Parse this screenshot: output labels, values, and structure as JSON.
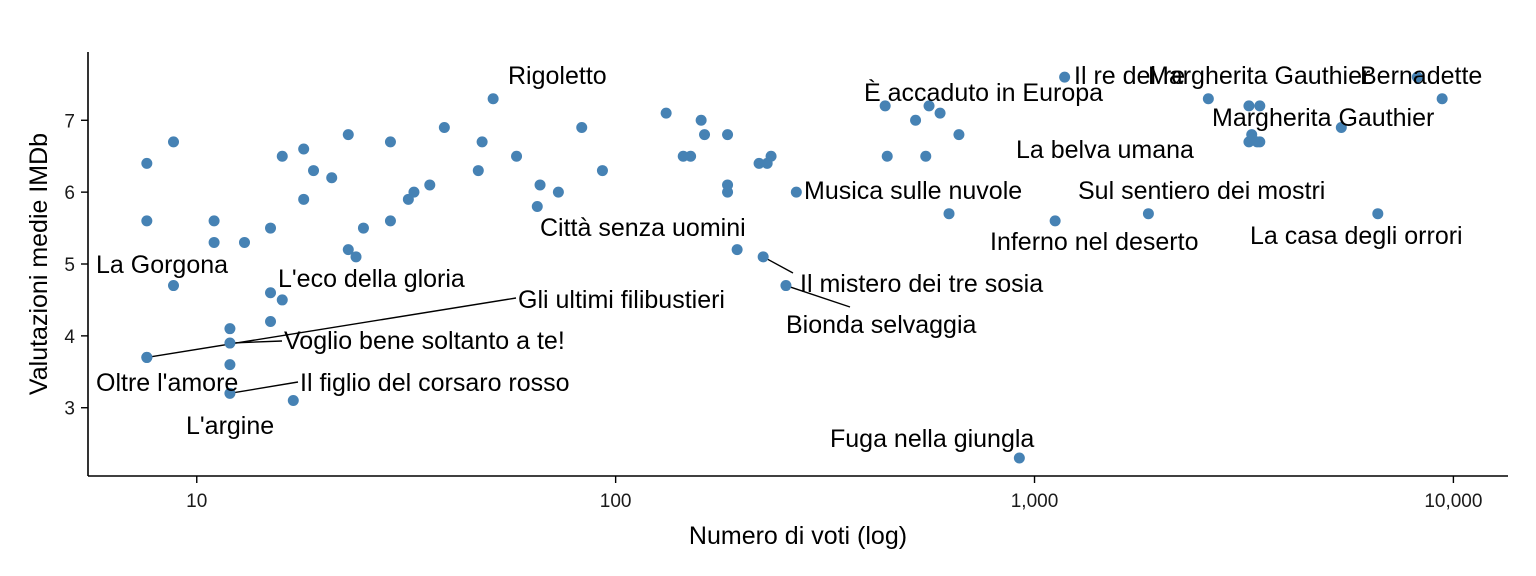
{
  "chart_data": {
    "type": "scatter",
    "xlabel": "Numero di voti (log)",
    "ylabel": "Valutazioni medie IMDb",
    "x_scale": "log10",
    "xlim": [
      5.5,
      13500
    ],
    "ylim": [
      2.05,
      7.95
    ],
    "x_ticks": [
      {
        "value": 10,
        "label": "10"
      },
      {
        "value": 100,
        "label": "100"
      },
      {
        "value": 1000,
        "label": "1,000"
      },
      {
        "value": 10000,
        "label": "10,000"
      }
    ],
    "y_ticks": [
      {
        "value": 3,
        "label": "3"
      },
      {
        "value": 4,
        "label": "4"
      },
      {
        "value": 5,
        "label": "5"
      },
      {
        "value": 6,
        "label": "6"
      },
      {
        "value": 7,
        "label": "7"
      }
    ],
    "point_color": "#4682b4",
    "grid": false,
    "labeled_points": [
      {
        "label": "Rigoletto",
        "x": 51,
        "y": 7.3
      },
      {
        "label": "Il re del re",
        "x": 1180,
        "y": 7.6
      },
      {
        "label": "Margherita Gauthier",
        "x": 2600,
        "y": 7.3
      },
      {
        "label": "Bernadette",
        "x": 8200,
        "y": 7.6
      },
      {
        "label": "Margherita Gauthier",
        "x": 9400,
        "y": 7.3
      },
      {
        "label": "È accaduto in Europa",
        "x": 560,
        "y": 7.2
      },
      {
        "label": "La belva umana",
        "x": 3400,
        "y": 6.7
      },
      {
        "label": "Musica sulle nuvole",
        "x": 270,
        "y": 6.0
      },
      {
        "label": "Sul sentiero dei mostri",
        "x": 1870,
        "y": 5.7
      },
      {
        "label": "La casa degli orrori",
        "x": 6600,
        "y": 5.7
      },
      {
        "label": "Città senza uomini",
        "x": 195,
        "y": 5.2
      },
      {
        "label": "Inferno nel deserto",
        "x": 1120,
        "y": 5.6
      },
      {
        "label": "La Gorgona",
        "x": 8.8,
        "y": 4.7
      },
      {
        "label": "L'eco della gloria",
        "x": 16,
        "y": 4.5
      },
      {
        "label": "Il mistero dei tre sosia",
        "x": 225,
        "y": 5.1
      },
      {
        "label": "Gli ultimi filibustieri",
        "x": 7.6,
        "y": 3.7
      },
      {
        "label": "Bionda selvaggia",
        "x": 255,
        "y": 4.7
      },
      {
        "label": "Voglio bene soltanto a te!",
        "x": 12,
        "y": 3.9
      },
      {
        "label": "Oltre l'amore",
        "x": 7.6,
        "y": 3.7
      },
      {
        "label": "Il figlio del corsaro rosso",
        "x": 12,
        "y": 3.2
      },
      {
        "label": "L'argine",
        "x": 17,
        "y": 3.1
      },
      {
        "label": "Fuga nella giungla",
        "x": 920,
        "y": 2.3
      }
    ],
    "other_points": [
      [
        7.6,
        6.4
      ],
      [
        7.6,
        5.6
      ],
      [
        8.8,
        6.7
      ],
      [
        11,
        5.6
      ],
      [
        11,
        5.3
      ],
      [
        12,
        4.1
      ],
      [
        12,
        3.6
      ],
      [
        13,
        5.3
      ],
      [
        15,
        5.5
      ],
      [
        15,
        4.6
      ],
      [
        15,
        4.2
      ],
      [
        16,
        6.5
      ],
      [
        18,
        6.6
      ],
      [
        18,
        5.9
      ],
      [
        19,
        6.3
      ],
      [
        21,
        6.2
      ],
      [
        23,
        6.8
      ],
      [
        23,
        5.2
      ],
      [
        24,
        5.1
      ],
      [
        25,
        5.5
      ],
      [
        29,
        6.7
      ],
      [
        29,
        5.6
      ],
      [
        32,
        5.9
      ],
      [
        33,
        6.0
      ],
      [
        36,
        6.1
      ],
      [
        39,
        6.9
      ],
      [
        47,
        6.3
      ],
      [
        48,
        6.7
      ],
      [
        58,
        6.5
      ],
      [
        65,
        5.8
      ],
      [
        66,
        6.1
      ],
      [
        73,
        6.0
      ],
      [
        83,
        6.9
      ],
      [
        93,
        6.3
      ],
      [
        132,
        7.1
      ],
      [
        145,
        6.5
      ],
      [
        151,
        6.5
      ],
      [
        160,
        7.0
      ],
      [
        163,
        6.8
      ],
      [
        185,
        6.8
      ],
      [
        185,
        6.1
      ],
      [
        185,
        6.0
      ],
      [
        220,
        6.4
      ],
      [
        230,
        6.4
      ],
      [
        235,
        6.5
      ],
      [
        440,
        7.2
      ],
      [
        445,
        6.5
      ],
      [
        520,
        7.0
      ],
      [
        550,
        6.5
      ],
      [
        595,
        7.1
      ],
      [
        625,
        5.7
      ],
      [
        660,
        6.8
      ],
      [
        3250,
        7.2
      ],
      [
        3250,
        6.7
      ],
      [
        3300,
        6.8
      ],
      [
        3450,
        7.2
      ],
      [
        3450,
        6.7
      ],
      [
        5400,
        6.9
      ]
    ]
  }
}
